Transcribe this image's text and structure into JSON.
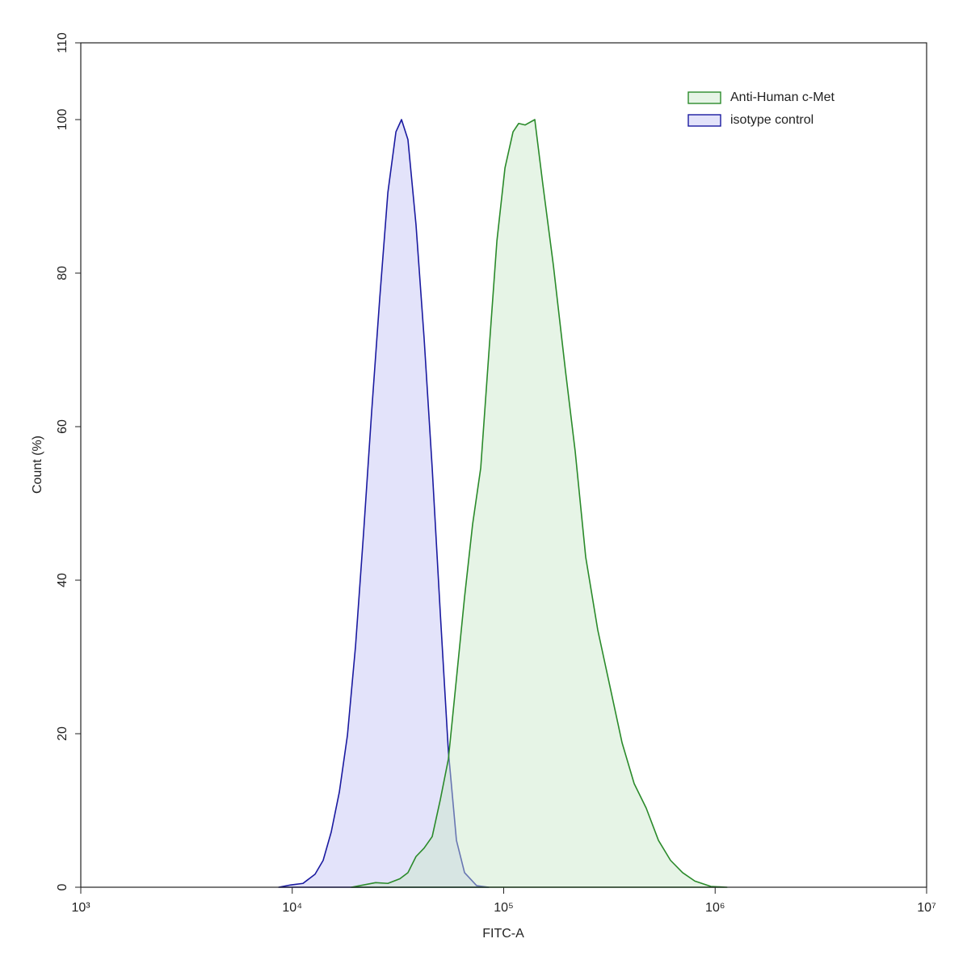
{
  "chart_data": {
    "type": "area",
    "xlabel": "FITC-A",
    "ylabel": "Count  (%)",
    "xscale": "log",
    "xlim": [
      1000,
      10000000
    ],
    "xticks": [
      {
        "value": 1000,
        "label": "10³"
      },
      {
        "value": 10000,
        "label": "10⁴"
      },
      {
        "value": 100000,
        "label": "10⁵"
      },
      {
        "value": 1000000,
        "label": "10⁶"
      },
      {
        "value": 10000000,
        "label": "10⁷"
      }
    ],
    "ylim": [
      0,
      110
    ],
    "yticks": [
      0,
      20,
      40,
      60,
      80,
      100,
      110
    ],
    "legend": "top-right",
    "series": [
      {
        "name": "Anti-Human c-Met",
        "color": "#2a8a2a",
        "fill": "rgba(200,230,200,0.45)",
        "x": [
          19050,
          24790,
          28330,
          32290,
          35250,
          38490,
          42040,
          45910,
          50140,
          54750,
          59790,
          65300,
          71300,
          77860,
          84980,
          92880,
          101400,
          110700,
          117700,
          126200,
          140300,
          153100,
          171800,
          195900,
          217800,
          244300,
          278600,
          317800,
          363100,
          414000,
          472100,
          539500,
          615200,
          701500,
          801700,
          955000,
          1137600
        ],
        "values": [
          0,
          0.6,
          0.5,
          1.1,
          1.9,
          4.0,
          5.1,
          6.6,
          11.4,
          16.7,
          27.2,
          37.8,
          47.3,
          54.6,
          69.4,
          84.2,
          93.7,
          98.4,
          99.5,
          99.3,
          100,
          91.6,
          81,
          67.3,
          56.8,
          43,
          33.5,
          26.2,
          18.8,
          13.5,
          10.3,
          6.1,
          3.5,
          1.9,
          0.8,
          0.1,
          0
        ]
      },
      {
        "name": "isotype control",
        "color": "#1a1aa0",
        "fill": "rgba(200,200,245,0.5)",
        "x": [
          8630,
          9840,
          11240,
          12820,
          14000,
          15290,
          16700,
          18240,
          19920,
          21750,
          23750,
          25940,
          28330,
          30930,
          32870,
          35250,
          38490,
          42040,
          45910,
          50140,
          54750,
          59790,
          65300,
          74500,
          84980
        ],
        "values": [
          0,
          0.3,
          0.5,
          1.7,
          3.5,
          7.2,
          12.4,
          19.8,
          31.4,
          46.2,
          62,
          76.8,
          90.5,
          98.4,
          100,
          97.4,
          86.3,
          71.5,
          54.6,
          35.7,
          17.7,
          6.1,
          1.9,
          0.2,
          0
        ]
      }
    ]
  }
}
